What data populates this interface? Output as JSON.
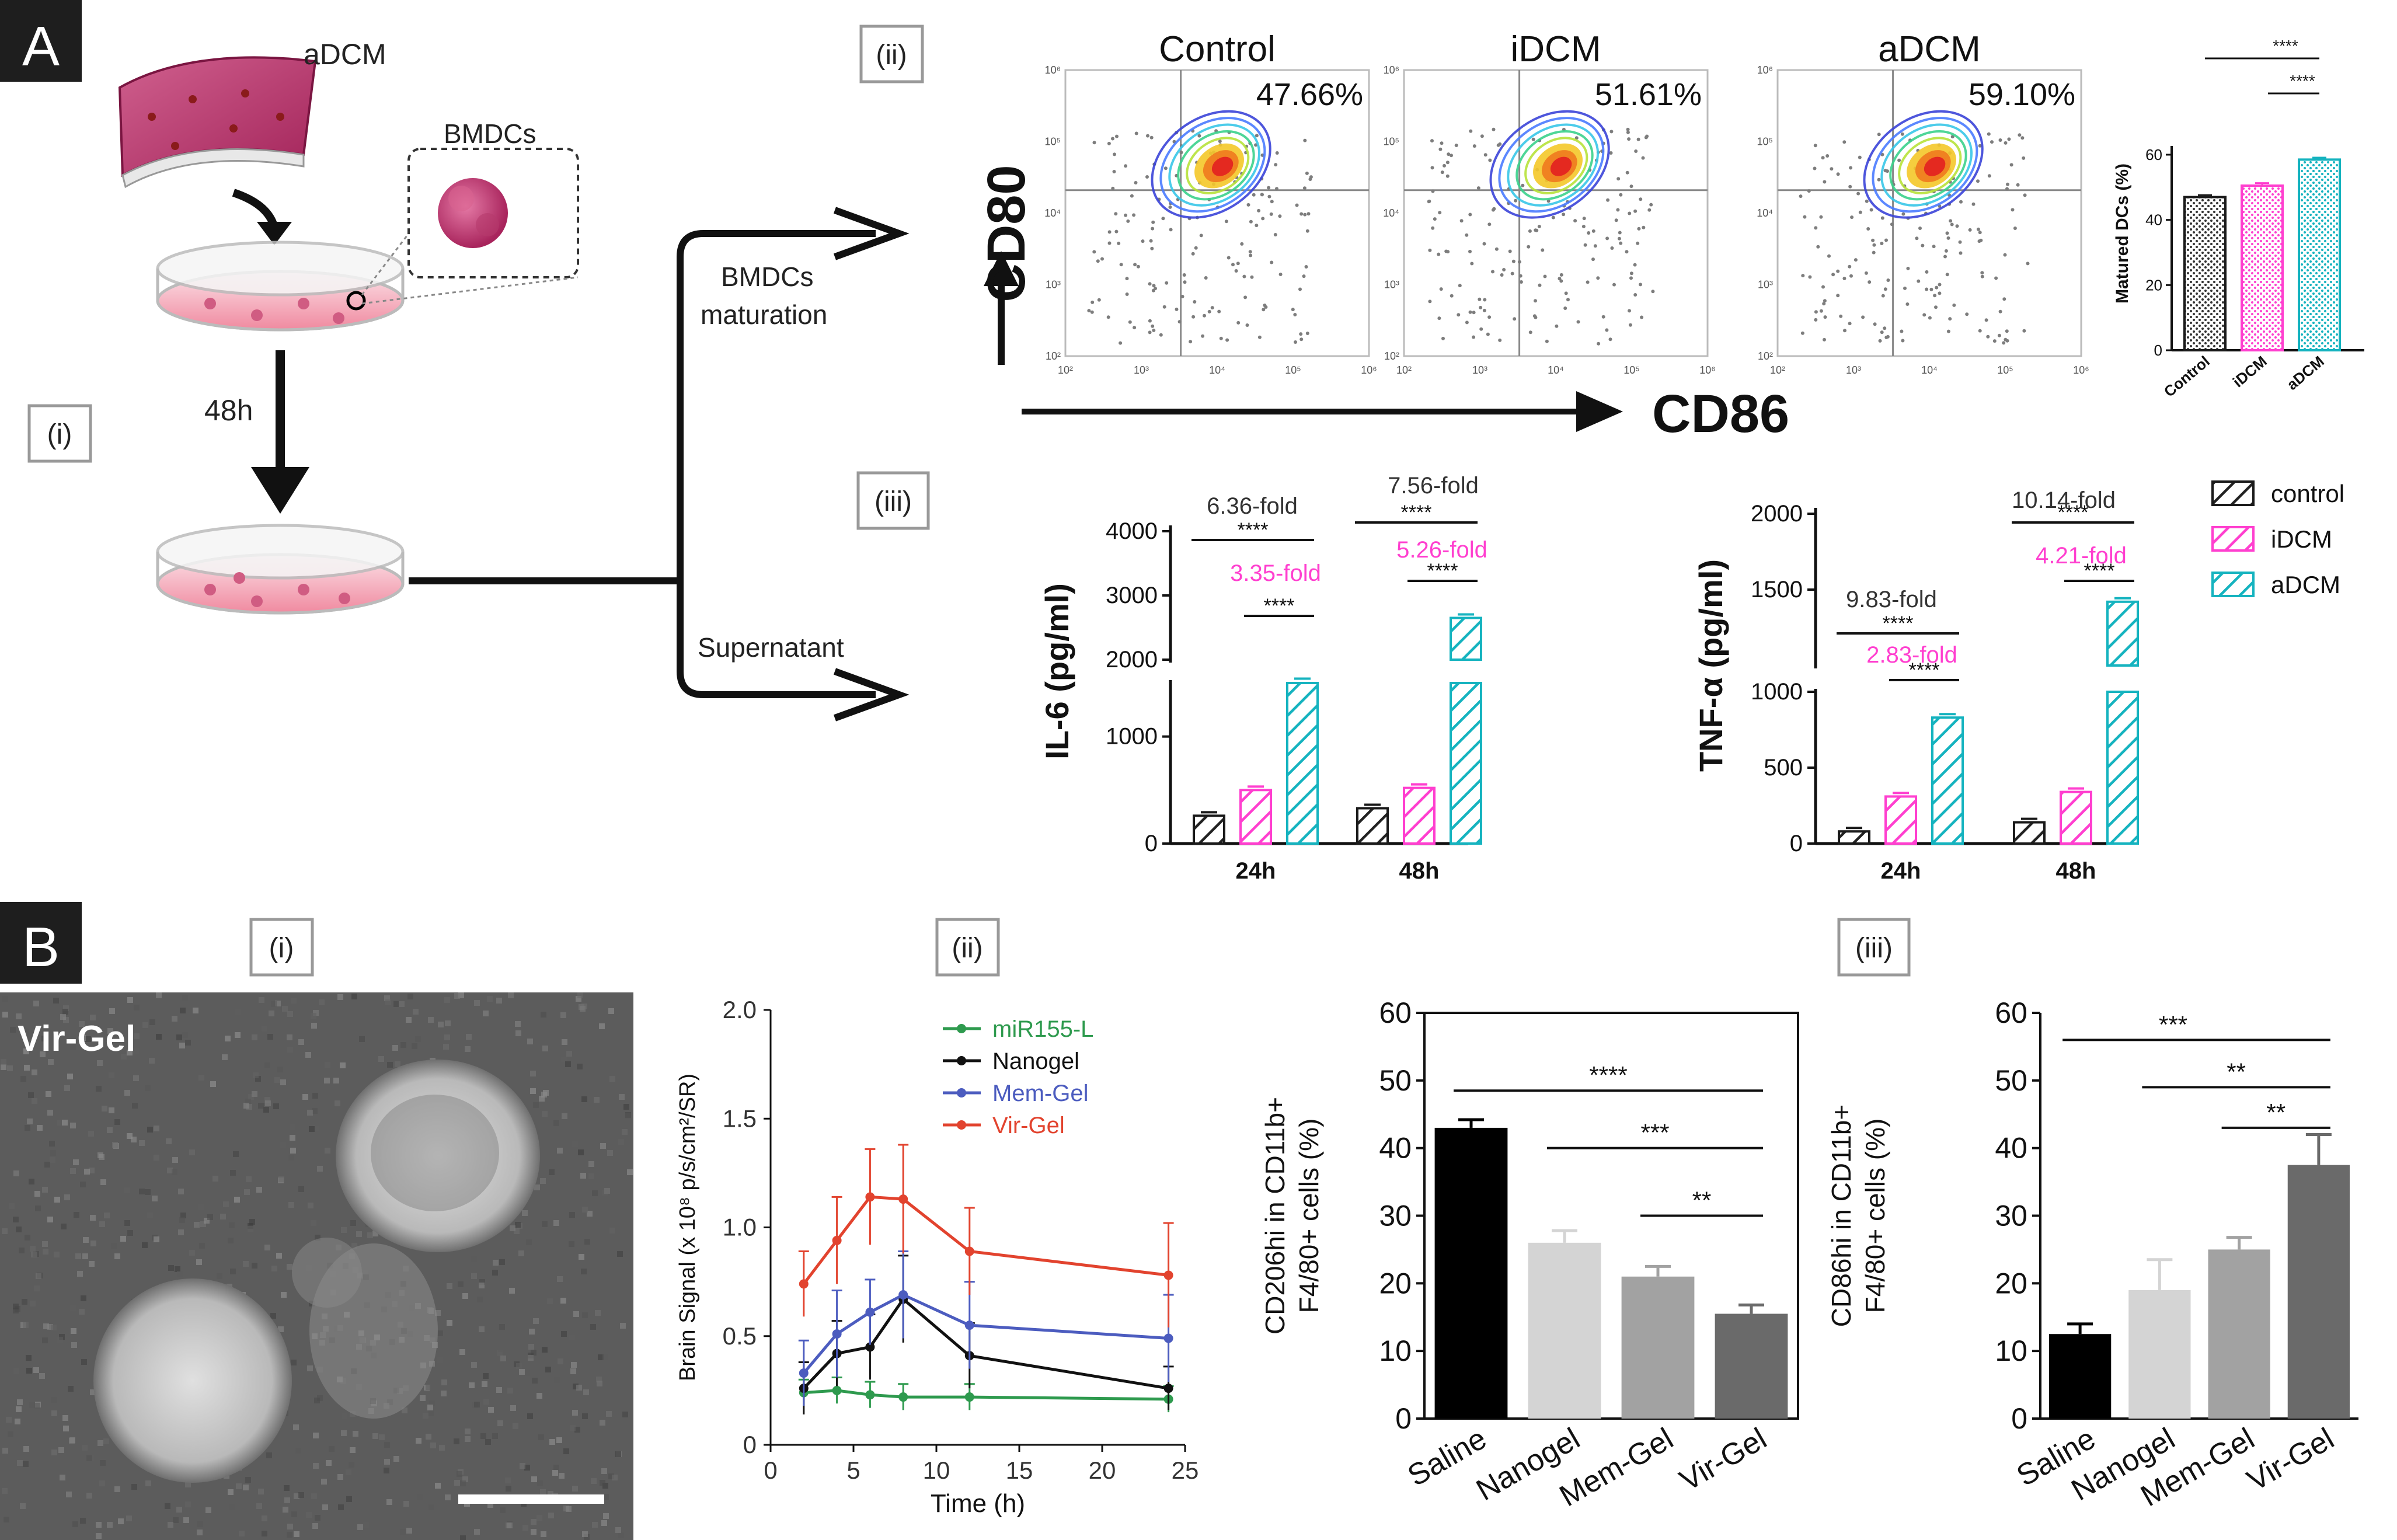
{
  "panel_a": {
    "letter": "A",
    "sub_i": "(i)",
    "sub_ii": "(ii)",
    "sub_iii": "(iii)",
    "adcm": "aDCM",
    "bmdcs": "BMDCs",
    "time": "48h",
    "maturation_line1": "BMDCs",
    "maturation_line2": "maturation",
    "supernatant": "Supernatant",
    "cd80": "CD80",
    "cd86": "CD86"
  },
  "panel_b": {
    "letter": "B",
    "sub_i": "(i)",
    "sub_ii": "(ii)",
    "sub_iii": "(iii)",
    "image_label": "Vir-Gel"
  },
  "legend_right": [
    "control",
    "iDCM",
    "aDCM"
  ],
  "colors": {
    "control": "#1a1a1a",
    "idcm": "#ff3fcf",
    "adcm": "#15b3bf",
    "miR155": "#2e9a4e",
    "nanogel": "#111111",
    "memgel": "#4c5cbf",
    "virgel": "#e2432e",
    "saline_bar": "#000000",
    "nanogel_bar": "#d4d4d4",
    "memgel_bar": "#a2a2a2",
    "virgel_bar": "#6a6a6a"
  },
  "chart_data": [
    {
      "id": "flow",
      "type": "scatter",
      "panels": [
        {
          "title": "Control",
          "percent": "47.66%"
        },
        {
          "title": "iDCM",
          "percent": "51.61%"
        },
        {
          "title": "aDCM",
          "percent": "59.10%"
        }
      ],
      "tick_labels": [
        "10²",
        "10³",
        "10⁴",
        "10⁵",
        "10⁶"
      ],
      "xlabel": "CD86",
      "ylabel": "CD80"
    },
    {
      "id": "matured",
      "type": "bar",
      "categories": [
        "Control",
        "iDCM",
        "aDCM"
      ],
      "values": [
        47,
        50.5,
        58.5
      ],
      "errors": [
        0.6,
        0.8,
        0.6
      ],
      "ylabel": "Matured DCs (%)",
      "ylim": [
        0,
        60
      ],
      "yticks": [
        0,
        20,
        40,
        60
      ],
      "sig": [
        "****",
        "****"
      ]
    },
    {
      "id": "il6",
      "type": "bar",
      "categories": [
        "24h",
        "48h"
      ],
      "series": [
        {
          "name": "control",
          "values": [
            260,
            330
          ]
        },
        {
          "name": "iDCM",
          "values": [
            500,
            520
          ]
        },
        {
          "name": "aDCM",
          "values": [
            1650,
            2650
          ]
        }
      ],
      "ylabel": "IL-6 (pg/ml)",
      "yticks": [
        0,
        1000,
        2000,
        3000,
        4000
      ],
      "fold": [
        {
          "fold": "6.36-fold",
          "sig": "****"
        },
        {
          "fold": "3.35-fold",
          "sig": "****"
        },
        {
          "fold": "7.56-fold",
          "sig": "****"
        },
        {
          "fold": "5.26-fold",
          "sig": "****"
        }
      ]
    },
    {
      "id": "tnf",
      "type": "bar",
      "categories": [
        "24h",
        "48h"
      ],
      "series": [
        {
          "name": "control",
          "values": [
            80,
            140
          ]
        },
        {
          "name": "iDCM",
          "values": [
            310,
            340
          ]
        },
        {
          "name": "aDCM",
          "values": [
            830,
            1420
          ]
        }
      ],
      "ylabel": "TNF-α (pg/ml)",
      "yticks": [
        0,
        500,
        1000,
        1500,
        2000
      ],
      "fold": [
        {
          "fold": "9.83-fold",
          "sig": "****"
        },
        {
          "fold": "2.83-fold",
          "sig": "****"
        },
        {
          "fold": "10.14-fold",
          "sig": "****"
        },
        {
          "fold": "4.21-fold",
          "sig": "****"
        }
      ]
    },
    {
      "id": "brain",
      "type": "line",
      "x": [
        2,
        4,
        6,
        8,
        12,
        24
      ],
      "series": [
        {
          "name": "miR155-L",
          "values": [
            0.24,
            0.25,
            0.23,
            0.22,
            0.22,
            0.21
          ],
          "errors": [
            0.06,
            0.06,
            0.06,
            0.06,
            0.06,
            0.06
          ]
        },
        {
          "name": "Nanogel",
          "values": [
            0.26,
            0.42,
            0.45,
            0.67,
            0.41,
            0.26
          ],
          "errors": [
            0.12,
            0.15,
            0.15,
            0.2,
            0.15,
            0.1
          ]
        },
        {
          "name": "Mem-Gel",
          "values": [
            0.33,
            0.51,
            0.61,
            0.69,
            0.55,
            0.49
          ],
          "errors": [
            0.15,
            0.2,
            0.15,
            0.2,
            0.2,
            0.2
          ]
        },
        {
          "name": "Vir-Gel",
          "values": [
            0.74,
            0.94,
            1.14,
            1.13,
            0.89,
            0.78
          ],
          "errors": [
            0.15,
            0.2,
            0.22,
            0.25,
            0.2,
            0.24
          ]
        }
      ],
      "xlabel": "Time (h)",
      "ylabel": "Brain Signal (x 10⁸ p/s/cm²/SR)",
      "xlim": [
        0,
        25
      ],
      "ylim": [
        0,
        2.0
      ],
      "xticks": [
        0,
        5,
        10,
        15,
        20,
        25
      ],
      "yticks": [
        0,
        0.5,
        1.0,
        1.5,
        2.0
      ]
    },
    {
      "id": "cd206",
      "type": "bar",
      "categories": [
        "Saline",
        "Nanogel",
        "Mem-Gel",
        "Vir-Gel"
      ],
      "values": [
        43,
        26,
        21,
        15.5
      ],
      "errors": [
        1.2,
        1.8,
        1.5,
        1.3
      ],
      "ylabel_line1": "CD206hi in CD11b+",
      "ylabel_line2": "F4/80+ cells (%)",
      "ylim": [
        0,
        60
      ],
      "yticks": [
        0,
        10,
        20,
        30,
        40,
        50,
        60
      ],
      "sig": [
        "****",
        "***",
        "**"
      ]
    },
    {
      "id": "cd86",
      "type": "bar",
      "categories": [
        "Saline",
        "Nanogel",
        "Mem-Gel",
        "Vir-Gel"
      ],
      "values": [
        12.5,
        19,
        25,
        37.5
      ],
      "errors": [
        1.5,
        4.5,
        1.8,
        4.5
      ],
      "ylabel_line1": "CD86hi in CD11b+",
      "ylabel_line2": "F4/80+ cells (%)",
      "ylim": [
        0,
        60
      ],
      "yticks": [
        0,
        10,
        20,
        30,
        40,
        50,
        60
      ],
      "sig": [
        "***",
        "**",
        "**"
      ]
    }
  ]
}
